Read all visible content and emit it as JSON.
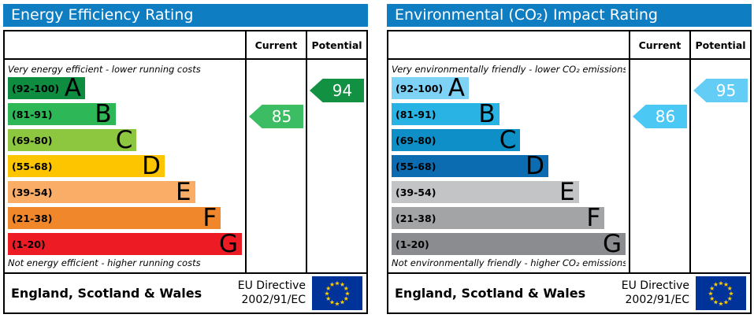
{
  "header_color": "#0f7dc2",
  "eu_flag": {
    "background": "#003399",
    "star_color": "#ffcc00",
    "star_count": 12
  },
  "panels": [
    {
      "title": "Energy Efficiency Rating",
      "columns": {
        "current": "Current",
        "potential": "Potential"
      },
      "top_caption": "Very energy efficient - lower running costs",
      "bottom_caption": "Not energy efficient - higher running costs",
      "bands": [
        {
          "range": "(92-100)",
          "letter": "A",
          "color": "#0e8c3f",
          "width_pct": 33
        },
        {
          "range": "(81-91)",
          "letter": "B",
          "color": "#2db757",
          "width_pct": 46
        },
        {
          "range": "(69-80)",
          "letter": "C",
          "color": "#8dc63f",
          "width_pct": 55
        },
        {
          "range": "(55-68)",
          "letter": "D",
          "color": "#fdc500",
          "width_pct": 67
        },
        {
          "range": "(39-54)",
          "letter": "E",
          "color": "#f9ad67",
          "width_pct": 80
        },
        {
          "range": "(21-38)",
          "letter": "F",
          "color": "#f0882b",
          "width_pct": 91
        },
        {
          "range": "(1-20)",
          "letter": "G",
          "color": "#ed1c24",
          "width_pct": 100
        }
      ],
      "current": {
        "label": "85",
        "band_index": 1,
        "color": "#3cbd63"
      },
      "potential": {
        "label": "94",
        "band_index": 0,
        "color": "#119141"
      },
      "footer": {
        "region": "England, Scotland & Wales",
        "directive_line1": "EU Directive",
        "directive_line2": "2002/91/EC"
      }
    },
    {
      "title": "Environmental (CO₂) Impact Rating",
      "columns": {
        "current": "Current",
        "potential": "Potential"
      },
      "top_caption": "Very environmentally friendly - lower CO₂ emissions",
      "bottom_caption": "Not environmentally friendly - higher CO₂ emissions",
      "bands": [
        {
          "range": "(92-100)",
          "letter": "A",
          "color": "#7ed2f6",
          "width_pct": 33
        },
        {
          "range": "(81-91)",
          "letter": "B",
          "color": "#29b3e4",
          "width_pct": 46
        },
        {
          "range": "(69-80)",
          "letter": "C",
          "color": "#0f8fc8",
          "width_pct": 55
        },
        {
          "range": "(55-68)",
          "letter": "D",
          "color": "#0c6cb2",
          "width_pct": 67
        },
        {
          "range": "(39-54)",
          "letter": "E",
          "color": "#c3c4c6",
          "width_pct": 80
        },
        {
          "range": "(21-38)",
          "letter": "F",
          "color": "#a2a4a6",
          "width_pct": 91
        },
        {
          "range": "(1-20)",
          "letter": "G",
          "color": "#8a8c8f",
          "width_pct": 100
        }
      ],
      "current": {
        "label": "86",
        "band_index": 1,
        "color": "#4cc8f4"
      },
      "potential": {
        "label": "95",
        "band_index": 0,
        "color": "#64cdf6"
      },
      "footer": {
        "region": "England, Scotland & Wales",
        "directive_line1": "EU Directive",
        "directive_line2": "2002/91/EC"
      }
    }
  ],
  "chart_data": [
    {
      "type": "bar",
      "title": "Energy Efficiency Rating",
      "categories": [
        "A (92-100)",
        "B (81-91)",
        "C (69-80)",
        "D (55-68)",
        "E (39-54)",
        "F (21-38)",
        "G (1-20)"
      ],
      "values": [
        33,
        46,
        55,
        67,
        80,
        91,
        100
      ],
      "series": [
        {
          "name": "Current",
          "value": 85,
          "band": "B"
        },
        {
          "name": "Potential",
          "value": 94,
          "band": "A"
        }
      ],
      "xlabel": "",
      "ylabel": "",
      "xlim": [
        0,
        100
      ],
      "legend_position": "right-columns",
      "annotations": [
        "Very energy efficient - lower running costs",
        "Not energy efficient - higher running costs",
        "England, Scotland & Wales",
        "EU Directive 2002/91/EC"
      ]
    },
    {
      "type": "bar",
      "title": "Environmental (CO₂) Impact Rating",
      "categories": [
        "A (92-100)",
        "B (81-91)",
        "C (69-80)",
        "D (55-68)",
        "E (39-54)",
        "F (21-38)",
        "G (1-20)"
      ],
      "values": [
        33,
        46,
        55,
        67,
        80,
        91,
        100
      ],
      "series": [
        {
          "name": "Current",
          "value": 86,
          "band": "B"
        },
        {
          "name": "Potential",
          "value": 95,
          "band": "A"
        }
      ],
      "xlabel": "",
      "ylabel": "",
      "xlim": [
        0,
        100
      ],
      "legend_position": "right-columns",
      "annotations": [
        "Very environmentally friendly - lower CO₂ emissions",
        "Not environmentally friendly - higher CO₂ emissions",
        "England, Scotland & Wales",
        "EU Directive 2002/91/EC"
      ]
    }
  ]
}
